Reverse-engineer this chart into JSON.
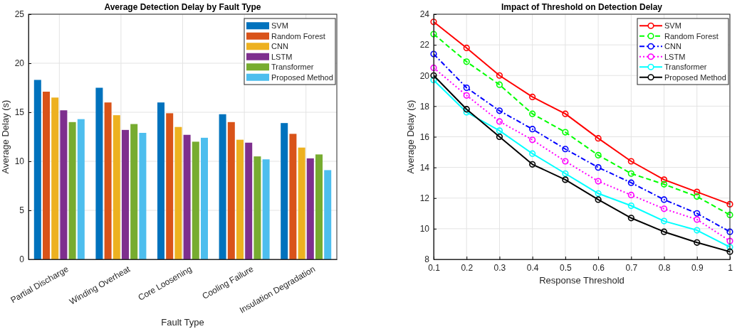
{
  "chart_data": [
    {
      "type": "bar",
      "title": "Average Detection Delay by Fault Type",
      "xlabel": "Fault Type",
      "ylabel": "Average Delay (s)",
      "categories": [
        "Partial Discharge",
        "Winding Overheat",
        "Core Loosening",
        "Cooling Failure",
        "Insulation Degradation"
      ],
      "series": [
        {
          "name": "SVM",
          "color": "#0072bd",
          "values": [
            18.3,
            17.5,
            16.0,
            14.8,
            13.9
          ]
        },
        {
          "name": "Random Forest",
          "color": "#d95319",
          "values": [
            17.1,
            16.0,
            14.9,
            14.0,
            12.8
          ]
        },
        {
          "name": "CNN",
          "color": "#edb120",
          "values": [
            16.5,
            14.7,
            13.5,
            12.2,
            11.4
          ]
        },
        {
          "name": "LSTM",
          "color": "#7e2f8e",
          "values": [
            15.2,
            13.2,
            12.7,
            11.9,
            10.3
          ]
        },
        {
          "name": "Transformer",
          "color": "#77ac30",
          "values": [
            14.0,
            13.8,
            12.0,
            10.5,
            10.7
          ]
        },
        {
          "name": "Proposed Method",
          "color": "#4dbeee",
          "values": [
            14.3,
            12.9,
            12.4,
            10.2,
            9.1
          ]
        }
      ],
      "ylim": [
        0,
        25
      ],
      "yticks": [
        0,
        5,
        10,
        15,
        20,
        25
      ],
      "grid": true,
      "legend": "top right"
    },
    {
      "type": "line",
      "title": "Impact of Threshold on Detection Delay",
      "xlabel": "Response Threshold",
      "ylabel": "Average Delay (s)",
      "x": [
        0.1,
        0.2,
        0.3,
        0.4,
        0.5,
        0.6,
        0.7,
        0.8,
        0.9,
        1
      ],
      "series": [
        {
          "name": "SVM",
          "color": "#ff0000",
          "line_style": "solid",
          "values": [
            23.5,
            21.8,
            20.0,
            18.6,
            17.5,
            15.9,
            14.4,
            13.2,
            12.4,
            11.6
          ]
        },
        {
          "name": "Random Forest",
          "color": "#00ff00",
          "line_style": "dashed",
          "values": [
            22.7,
            20.9,
            19.4,
            17.5,
            16.3,
            14.8,
            13.6,
            12.9,
            12.1,
            10.9
          ]
        },
        {
          "name": "CNN",
          "color": "#0000ff",
          "line_style": "dashdot",
          "values": [
            21.4,
            19.2,
            17.7,
            16.5,
            15.2,
            14.0,
            13.0,
            11.9,
            11.0,
            9.8
          ]
        },
        {
          "name": "LSTM",
          "color": "#ff00ff",
          "line_style": "dotted",
          "values": [
            20.5,
            18.7,
            17.0,
            15.8,
            14.4,
            13.1,
            12.2,
            11.3,
            10.6,
            9.2
          ]
        },
        {
          "name": "Transformer",
          "color": "#00ffff",
          "line_style": "solid",
          "values": [
            19.7,
            17.6,
            16.4,
            14.9,
            13.6,
            12.3,
            11.5,
            10.5,
            9.9,
            8.8
          ]
        },
        {
          "name": "Proposed Method",
          "color": "#000000",
          "line_style": "solid",
          "values": [
            20.0,
            17.8,
            16.0,
            14.2,
            13.2,
            11.9,
            10.7,
            9.8,
            9.1,
            8.5
          ]
        }
      ],
      "xlim": [
        0.1,
        1
      ],
      "xticks": [
        0.1,
        0.2,
        0.3,
        0.4,
        0.5,
        0.6,
        0.7,
        0.8,
        0.9,
        1
      ],
      "ylim": [
        8,
        24
      ],
      "yticks": [
        8,
        10,
        12,
        14,
        16,
        18,
        20,
        22,
        24
      ],
      "grid": true,
      "legend": "top right",
      "marker": "circle"
    }
  ]
}
